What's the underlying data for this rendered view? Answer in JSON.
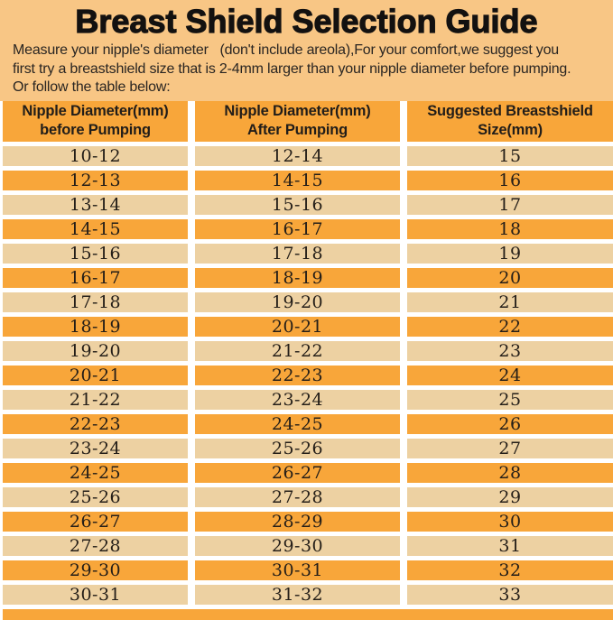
{
  "page": {
    "title": "Breast Shield Selection Guide",
    "intro_lines": [
      "Measure your nipple's diameter   (don't include areola),For your comfort,we suggest you",
      "first try a breastshield size that is 2-4mm larger than your nipple diameter before pumping.",
      "Or follow the table below:"
    ]
  },
  "table": {
    "headers": [
      {
        "line1": "Nipple Diameter(mm)",
        "line2": "before Pumping"
      },
      {
        "line1": "Nipple Diameter(mm)",
        "line2": "After Pumping"
      },
      {
        "line1": "Suggested Breastshield",
        "line2": "Size(mm)"
      }
    ],
    "rows": [
      [
        "10-12",
        "12-14",
        "15"
      ],
      [
        "12-13",
        "14-15",
        "16"
      ],
      [
        "13-14",
        "15-16",
        "17"
      ],
      [
        "14-15",
        "16-17",
        "18"
      ],
      [
        "15-16",
        "17-18",
        "19"
      ],
      [
        "16-17",
        "18-19",
        "20"
      ],
      [
        "17-18",
        "19-20",
        "21"
      ],
      [
        "18-19",
        "20-21",
        "22"
      ],
      [
        "19-20",
        "21-22",
        "23"
      ],
      [
        "20-21",
        "22-23",
        "24"
      ],
      [
        "21-22",
        "23-24",
        "25"
      ],
      [
        "22-23",
        "24-25",
        "26"
      ],
      [
        "23-24",
        "25-26",
        "27"
      ],
      [
        "24-25",
        "26-27",
        "28"
      ],
      [
        "25-26",
        "27-28",
        "29"
      ],
      [
        "26-27",
        "28-29",
        "30"
      ],
      [
        "27-28",
        "29-30",
        "31"
      ],
      [
        "29-30",
        "30-31",
        "32"
      ],
      [
        "30-31",
        "31-32",
        "33"
      ]
    ]
  },
  "colors": {
    "background": "#f8c685",
    "row_light": "#edd1a2",
    "row_orange": "#f8a63a",
    "separator": "#ffffff",
    "text": "#1e1a17"
  }
}
